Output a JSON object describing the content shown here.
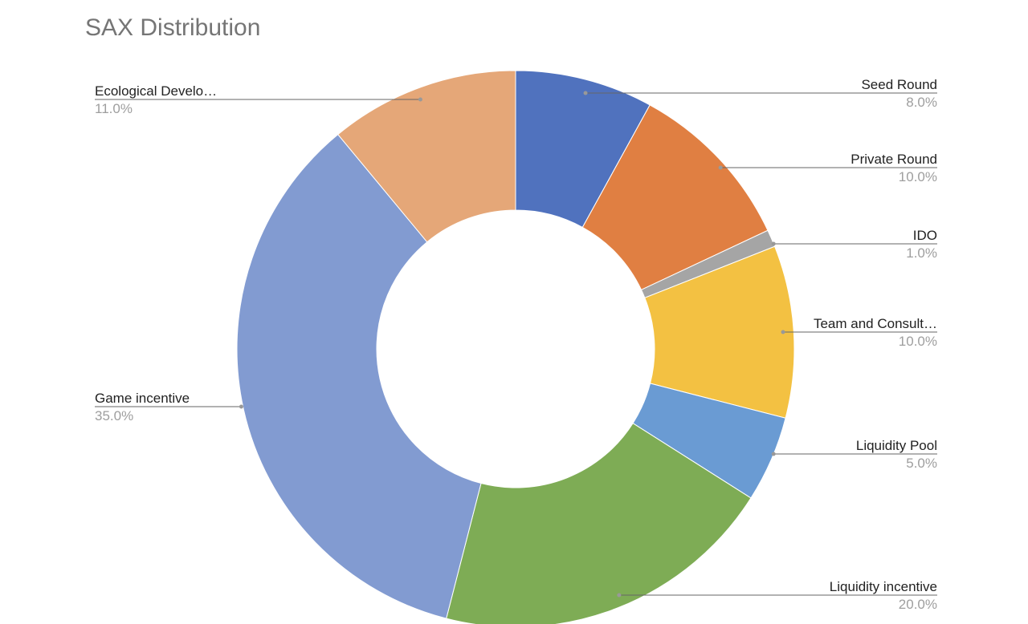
{
  "chart_data": {
    "type": "pie",
    "donut": true,
    "title": "SAX Distribution",
    "slices": [
      {
        "label": "Seed Round",
        "value": 8.0,
        "pct_label": "8.0%",
        "color": "#5072BE"
      },
      {
        "label": "Private Round",
        "value": 10.0,
        "pct_label": "10.0%",
        "color": "#E07F42"
      },
      {
        "label": "IDO",
        "value": 1.0,
        "pct_label": "1.0%",
        "color": "#A5A5A5"
      },
      {
        "label": "Team and Consult…",
        "value": 10.0,
        "pct_label": "10.0%",
        "color": "#F3C142"
      },
      {
        "label": "Liquidity Pool",
        "value": 5.0,
        "pct_label": "5.0%",
        "color": "#6A9BD3"
      },
      {
        "label": "Liquidity incentive",
        "value": 20.0,
        "pct_label": "20.0%",
        "color": "#7EAC55"
      },
      {
        "label": "Game incentive",
        "value": 35.0,
        "pct_label": "35.0%",
        "color": "#829BD1"
      },
      {
        "label": "Ecological Develo…",
        "value": 11.0,
        "pct_label": "11.0%",
        "color": "#E5A778"
      }
    ],
    "legend": "none"
  }
}
